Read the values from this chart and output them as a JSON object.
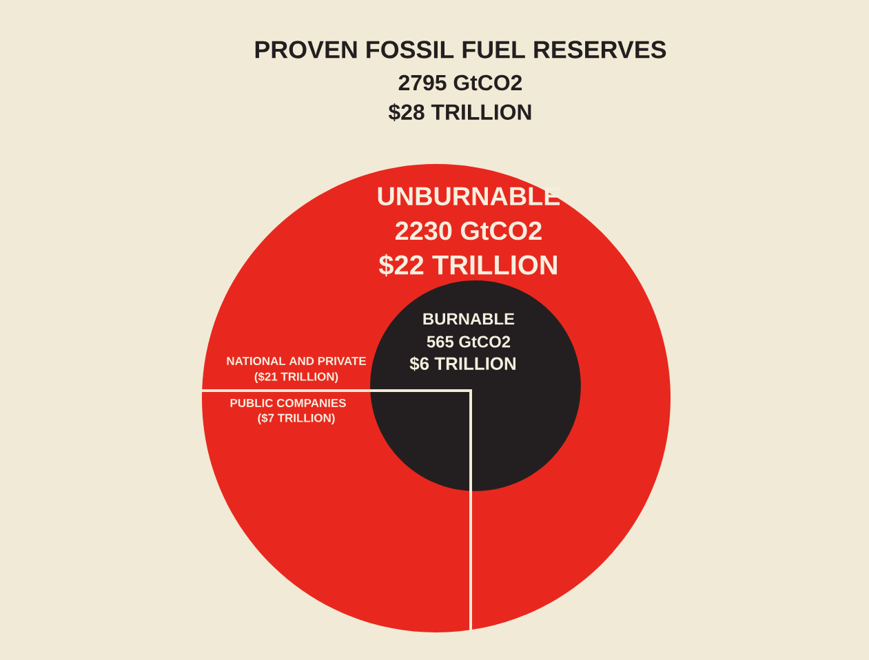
{
  "chart_data": {
    "type": "other",
    "title": "PROVEN FOSSIL FUEL RESERVES",
    "subtitle": "2795 GtCO2",
    "categories": [
      "UNBURNABLE",
      "BURNABLE"
    ],
    "values": [
      2230,
      565
    ],
    "value_labels": [
      "2230 GtCO2",
      "565 GtCO2"
    ],
    "colors": [
      "#e8281e",
      "#231f20"
    ],
    "annotations": [
      "$28 TRILLION",
      "$22 TRILLION",
      "$6 TRILLION",
      "NATIONAL AND PRIVATE",
      "($21 TRILLION)",
      "PUBLIC COMPANIES",
      "($7 TRILLION)"
    ]
  }
}
